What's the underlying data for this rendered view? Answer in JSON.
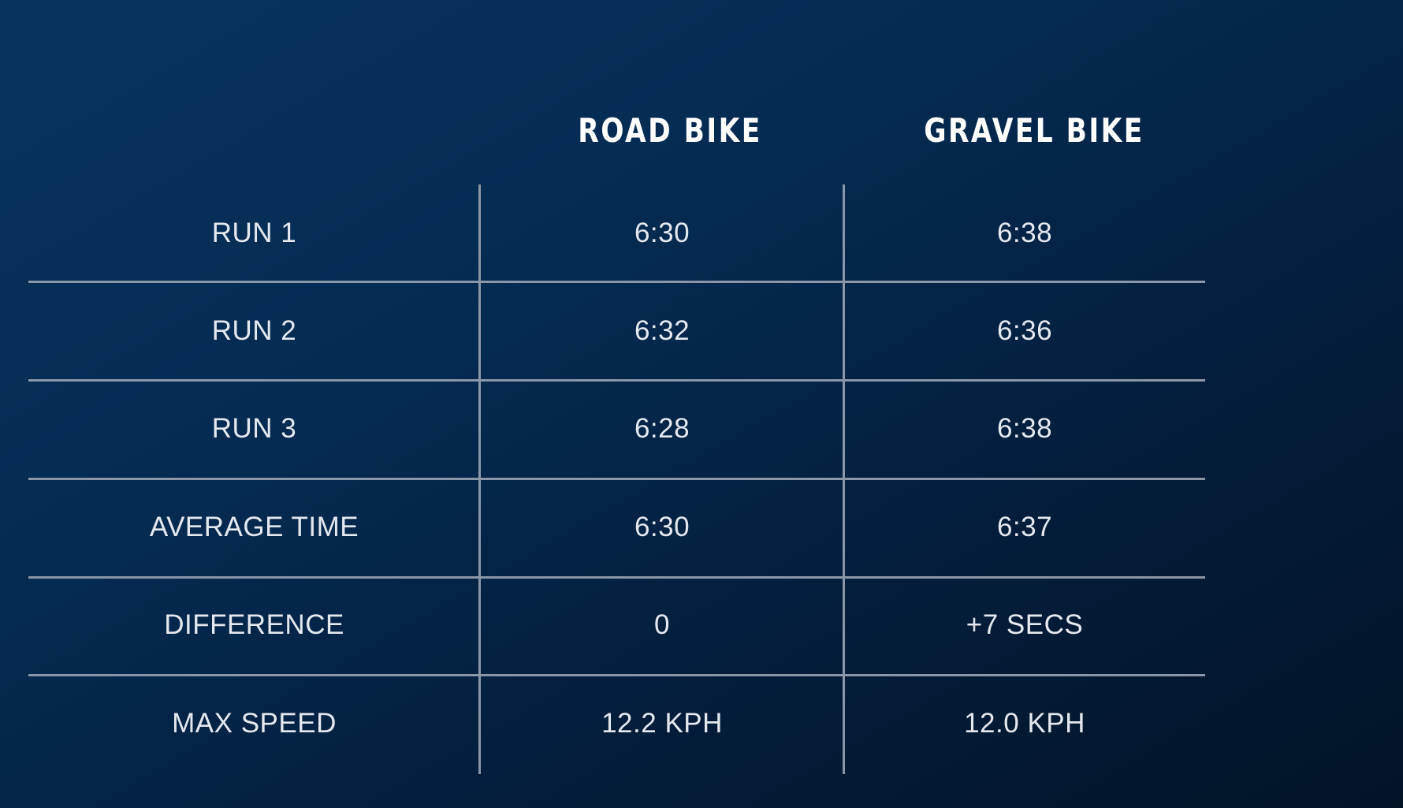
{
  "table": {
    "headers": {
      "label": "",
      "road": "ROAD BIKE",
      "gravel": "GRAVEL BIKE"
    },
    "rows": [
      {
        "label": "RUN 1",
        "road": "6:30",
        "gravel": "6:38"
      },
      {
        "label": "RUN 2",
        "road": "6:32",
        "gravel": "6:36"
      },
      {
        "label": "RUN 3",
        "road": "6:28",
        "gravel": "6:38"
      },
      {
        "label": "AVERAGE TIME",
        "road": "6:30",
        "gravel": "6:37"
      },
      {
        "label": "DIFFERENCE",
        "road": "0",
        "gravel": "+7 SECS"
      },
      {
        "label": "MAX SPEED",
        "road": "12.2 KPH",
        "gravel": "12.0 KPH"
      }
    ]
  },
  "colors": {
    "background_start": "#06345f",
    "background_end": "#021428",
    "grid_lines": "#8a97a8",
    "header_text": "#ffffff",
    "cell_text": "#e4e9f0"
  }
}
